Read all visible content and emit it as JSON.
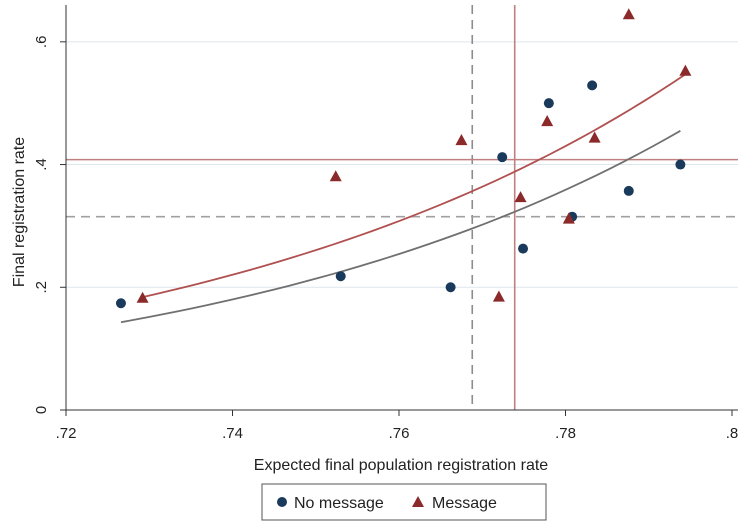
{
  "chart_data": {
    "type": "scatter",
    "xlabel": "Expected final population registration rate",
    "ylabel": "Final registration rate",
    "xlim": [
      0.72,
      0.8
    ],
    "ylim": [
      0,
      0.66
    ],
    "xticks": [
      ".72",
      ".74",
      ".76",
      ".78",
      ".8"
    ],
    "xtick_values": [
      0.72,
      0.74,
      0.76,
      0.78,
      0.8
    ],
    "yticks": [
      "0",
      ".2",
      ".4",
      ".6"
    ],
    "ytick_values": [
      0,
      0.2,
      0.4,
      0.6
    ],
    "grid": true,
    "legend": "bottom",
    "series": [
      {
        "name": "No message",
        "marker": "circle",
        "color": "#1a3a5c",
        "points": [
          {
            "x": 0.7266,
            "y": 0.174
          },
          {
            "x": 0.753,
            "y": 0.218
          },
          {
            "x": 0.7662,
            "y": 0.2
          },
          {
            "x": 0.7724,
            "y": 0.412
          },
          {
            "x": 0.7749,
            "y": 0.263
          },
          {
            "x": 0.778,
            "y": 0.5
          },
          {
            "x": 0.7808,
            "y": 0.315
          },
          {
            "x": 0.7832,
            "y": 0.529
          },
          {
            "x": 0.7876,
            "y": 0.357
          },
          {
            "x": 0.7938,
            "y": 0.4
          }
        ],
        "fit_x": [
          0.7266,
          0.7938
        ],
        "fit_curve": {
          "a": 0.143,
          "b": 0.455
        },
        "fit_color": "#707070"
      },
      {
        "name": "Message",
        "marker": "triangle",
        "color": "#8b2a2a",
        "points": [
          {
            "x": 0.7292,
            "y": 0.183
          },
          {
            "x": 0.7524,
            "y": 0.381
          },
          {
            "x": 0.7675,
            "y": 0.44
          },
          {
            "x": 0.772,
            "y": 0.185
          },
          {
            "x": 0.7746,
            "y": 0.347
          },
          {
            "x": 0.7778,
            "y": 0.471
          },
          {
            "x": 0.7804,
            "y": 0.312
          },
          {
            "x": 0.7835,
            "y": 0.444
          },
          {
            "x": 0.7876,
            "y": 0.645
          },
          {
            "x": 0.7944,
            "y": 0.553
          }
        ],
        "fit_x": [
          0.7292,
          0.7944
        ],
        "fit_curve": {
          "a": 0.184,
          "b": 0.547
        },
        "fit_color": "#b05050"
      }
    ],
    "reference_lines": [
      {
        "orientation": "vertical",
        "value": 0.7688,
        "style": "dashed",
        "color": "#8c8c8c"
      },
      {
        "orientation": "vertical",
        "value": 0.7739,
        "style": "solid",
        "color": "#c08080"
      },
      {
        "orientation": "horizontal",
        "value": 0.315,
        "style": "dashed",
        "color": "#a0a0a0"
      },
      {
        "orientation": "horizontal",
        "value": 0.408,
        "style": "solid",
        "color": "#c08080"
      }
    ]
  }
}
